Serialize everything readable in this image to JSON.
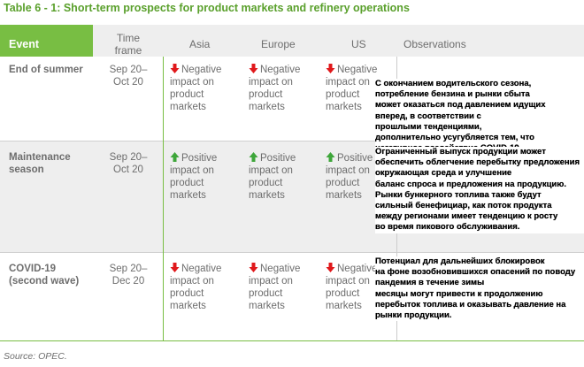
{
  "title": "Table 6 - 1: Short-term prospects for product markets and refinery operations",
  "header": {
    "event": "Event",
    "time_frame": "Time frame",
    "asia": "Asia",
    "europe": "Europe",
    "us": "US",
    "observations": "Observations"
  },
  "colors": {
    "accent": "#78be43",
    "title": "#5aa02c",
    "down_arrow": "#e0181b",
    "up_arrow": "#3ea63a"
  },
  "rows": [
    {
      "event": "End of summer",
      "time_frame": "Sep 20– Oct 20",
      "asia": {
        "direction": "down-arrow-icon",
        "label": "Negative impact on product markets"
      },
      "europe": {
        "direction": "down-arrow-icon",
        "label": "Negative impact on product markets"
      },
      "us": {
        "direction": "down-arrow-icon",
        "label": "Negative impact on product markets"
      },
      "observations": [
        "С окончанием водительского сезона,",
        "потребление бензина и рынки сбыта",
        "может оказаться под давлением идущих",
        "вперед, в соответствии с",
        " прошлыми тенденциями,",
        "дополнительно усугубляется тем, что",
        "негативное воздействие COVID-19"
      ]
    },
    {
      "event": "Maintenance season",
      "time_frame": "Sep 20– Oct 20",
      "asia": {
        "direction": "up-arrow-icon",
        "label": "Positive impact on product markets"
      },
      "europe": {
        "direction": "up-arrow-icon",
        "label": "Positive impact on product markets"
      },
      "us": {
        "direction": "up-arrow-icon",
        "label": "Positive impact on product markets"
      },
      "observations": [
        "Ограниченный выпуск продукции может",
        "обеспечить облегчение перебытку предложения",
        "окружающая среда и улучшение",
        "баланс спроса и предложения на продукцию.",
        "Рынки бункерного топлива также будут",
        "сильный бенефициар, как поток продукта",
        "между регионами имеет тенденцию к росту",
        "во время пикового обслуживания."
      ]
    },
    {
      "event": "COVID-19 (second wave)",
      "time_frame": "Sep 20– Dec 20",
      "asia": {
        "direction": "down-arrow-icon",
        "label": "Negative impact on product markets"
      },
      "europe": {
        "direction": "down-arrow-icon",
        "label": "Negative impact on product markets"
      },
      "us": {
        "direction": "down-arrow-icon",
        "label": "Negative impact on product markets"
      },
      "observations": [
        "Потенциал для дальнейших блокировок",
        "на фоне возобновившихся опасений по поводу",
        "пандемия в течение зимы",
        "месяцы могут привести к продолжению",
        "перебыток топлива и оказывать давление на",
        "рынки продукции."
      ]
    }
  ],
  "source": "Source: OPEC."
}
